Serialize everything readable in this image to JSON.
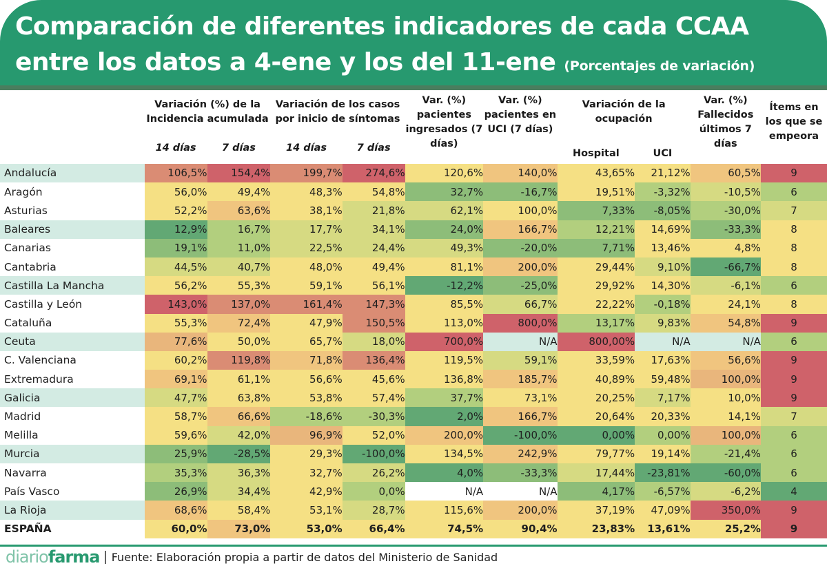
{
  "header": {
    "title_line1": "Comparación de diferentes indicadores de cada CCAA",
    "title_line2": "entre los datos a 4-ene y los del 11-ene",
    "subtitle": "(Porcentajes de variación)"
  },
  "footer": {
    "logo_part1": "diario",
    "logo_part2": "farma",
    "separator": "|",
    "source": "Fuente: Elaboración propia a partir de datos del Ministerio de Sanidad"
  },
  "colors": {
    "header_bg": "#27996f",
    "R": "#cf626a",
    "O": "#da8c74",
    "P": "#e9b67c",
    "Q": "#f0c57f",
    "Y": "#f5e084",
    "L": "#d6da82",
    "G": "#b2cf7e",
    "M": "#8dbd79",
    "D": "#62a874",
    "B": "#d3ebe3",
    "W": "#ffffff"
  },
  "chart_data": {
    "type": "table",
    "title": "Comparación de diferentes indicadores de cada CCAA entre los datos a 4-ene y los del 11-ene (Porcentajes de variación)",
    "column_groups": [
      {
        "label": "Variación (%)  de la Incidencia acumulada",
        "sub": [
          "14 días",
          "7 días"
        ]
      },
      {
        "label": "Variación de los casos por inicio de síntomas",
        "sub": [
          "14 días",
          "7 días"
        ]
      },
      {
        "label": "Var. (%) pacientes ingresados (7 días)",
        "sub": []
      },
      {
        "label": "Var. (%) pacientes en UCI (7 días)",
        "sub": []
      },
      {
        "label": "Variación de la ocupación",
        "sub": [
          "Hospital",
          "UCI"
        ]
      },
      {
        "label": "Var. (%) Fallecidos últimos 7 días",
        "sub": []
      },
      {
        "label": "Ítems en los que se empeora",
        "sub": []
      }
    ],
    "rows": [
      {
        "name": "Andalucía",
        "hl": true,
        "values": [
          "106,5%",
          "154,4%",
          "199,7%",
          "274,6%",
          "120,6%",
          "140,0%",
          "43,65%",
          "21,12%",
          "60,5%",
          "9"
        ],
        "colors": [
          "O",
          "R",
          "O",
          "R",
          "Y",
          "Q",
          "Y",
          "Y",
          "Q",
          "R"
        ]
      },
      {
        "name": "Aragón",
        "hl": false,
        "values": [
          "56,0%",
          "49,4%",
          "48,3%",
          "54,8%",
          "32,7%",
          "-16,7%",
          "19,51%",
          "-3,32%",
          "-10,5%",
          "6"
        ],
        "colors": [
          "Y",
          "Y",
          "Y",
          "Y",
          "M",
          "M",
          "Y",
          "G",
          "L",
          "G"
        ]
      },
      {
        "name": "Asturias",
        "hl": false,
        "values": [
          "52,2%",
          "63,6%",
          "38,1%",
          "21,8%",
          "62,1%",
          "100,0%",
          "7,33%",
          "-8,05%",
          "-30,0%",
          "7"
        ],
        "colors": [
          "Y",
          "Q",
          "Y",
          "L",
          "L",
          "Y",
          "M",
          "M",
          "G",
          "L"
        ]
      },
      {
        "name": "Baleares",
        "hl": true,
        "values": [
          "12,9%",
          "16,7%",
          "17,7%",
          "34,1%",
          "24,0%",
          "166,7%",
          "12,21%",
          "14,69%",
          "-33,3%",
          "8"
        ],
        "colors": [
          "D",
          "G",
          "L",
          "L",
          "M",
          "Q",
          "G",
          "Y",
          "M",
          "Y"
        ]
      },
      {
        "name": "Canarias",
        "hl": false,
        "values": [
          "19,1%",
          "11,0%",
          "22,5%",
          "24,4%",
          "49,3%",
          "-20,0%",
          "7,71%",
          "13,46%",
          "4,8%",
          "8"
        ],
        "colors": [
          "M",
          "G",
          "L",
          "L",
          "L",
          "M",
          "M",
          "Y",
          "Y",
          "Y"
        ]
      },
      {
        "name": "Cantabria",
        "hl": false,
        "values": [
          "44,5%",
          "40,7%",
          "48,0%",
          "49,4%",
          "81,1%",
          "200,0%",
          "29,44%",
          "9,10%",
          "-66,7%",
          "8"
        ],
        "colors": [
          "L",
          "L",
          "Y",
          "Y",
          "Y",
          "Q",
          "Y",
          "L",
          "D",
          "Y"
        ]
      },
      {
        "name": "Castilla La Mancha",
        "hl": true,
        "values": [
          "56,2%",
          "55,3%",
          "59,1%",
          "56,1%",
          "-12,2%",
          "-25,0%",
          "29,92%",
          "14,30%",
          "-6,1%",
          "6"
        ],
        "colors": [
          "Y",
          "Y",
          "Y",
          "Y",
          "D",
          "M",
          "Y",
          "Y",
          "L",
          "G"
        ]
      },
      {
        "name": "Castilla y León",
        "hl": false,
        "values": [
          "143,0%",
          "137,0%",
          "161,4%",
          "147,3%",
          "85,5%",
          "66,7%",
          "22,22%",
          "-0,18%",
          "24,1%",
          "8"
        ],
        "colors": [
          "R",
          "O",
          "O",
          "O",
          "Y",
          "L",
          "Y",
          "G",
          "Y",
          "Y"
        ]
      },
      {
        "name": "Cataluña",
        "hl": false,
        "values": [
          "55,3%",
          "72,4%",
          "47,9%",
          "150,5%",
          "113,0%",
          "800,0%",
          "13,17%",
          "9,83%",
          "54,8%",
          "9"
        ],
        "colors": [
          "Y",
          "Q",
          "Y",
          "O",
          "Y",
          "R",
          "G",
          "L",
          "Q",
          "R"
        ]
      },
      {
        "name": "Ceuta",
        "hl": true,
        "values": [
          "77,6%",
          "50,0%",
          "65,7%",
          "18,0%",
          "700,0%",
          "N/A",
          "800,00%",
          "N/A",
          "N/A",
          "6"
        ],
        "colors": [
          "P",
          "Y",
          "Y",
          "L",
          "R",
          "B",
          "R",
          "B",
          "B",
          "G"
        ]
      },
      {
        "name": "C. Valenciana",
        "hl": false,
        "values": [
          "60,2%",
          "119,8%",
          "71,8%",
          "136,4%",
          "119,5%",
          "59,1%",
          "33,59%",
          "17,63%",
          "56,6%",
          "9"
        ],
        "colors": [
          "Y",
          "O",
          "Q",
          "O",
          "Y",
          "L",
          "Y",
          "Y",
          "Q",
          "R"
        ]
      },
      {
        "name": "Extremadura",
        "hl": false,
        "values": [
          "69,1%",
          "61,1%",
          "56,6%",
          "45,6%",
          "136,8%",
          "185,7%",
          "40,89%",
          "59,48%",
          "100,0%",
          "9"
        ],
        "colors": [
          "Q",
          "Y",
          "Y",
          "Y",
          "Y",
          "Q",
          "Y",
          "Y",
          "P",
          "R"
        ]
      },
      {
        "name": "Galicia",
        "hl": true,
        "values": [
          "47,7%",
          "63,8%",
          "53,8%",
          "57,4%",
          "37,7%",
          "73,1%",
          "20,25%",
          "7,17%",
          "10,0%",
          "9"
        ],
        "colors": [
          "L",
          "Y",
          "Y",
          "Y",
          "G",
          "Y",
          "Y",
          "L",
          "Y",
          "R"
        ]
      },
      {
        "name": "Madrid",
        "hl": false,
        "values": [
          "58,7%",
          "66,6%",
          "-18,6%",
          "-30,3%",
          "2,0%",
          "166,7%",
          "20,64%",
          "20,33%",
          "14,1%",
          "7"
        ],
        "colors": [
          "Y",
          "Q",
          "G",
          "G",
          "D",
          "Q",
          "Y",
          "Y",
          "Y",
          "L"
        ]
      },
      {
        "name": "Melilla",
        "hl": false,
        "values": [
          "59,6%",
          "42,0%",
          "96,9%",
          "52,0%",
          "200,0%",
          "-100,0%",
          "0,00%",
          "0,00%",
          "100,0%",
          "6"
        ],
        "colors": [
          "Y",
          "L",
          "P",
          "Y",
          "Q",
          "D",
          "D",
          "G",
          "P",
          "G"
        ]
      },
      {
        "name": "Murcia",
        "hl": true,
        "values": [
          "25,9%",
          "-28,5%",
          "29,3%",
          "-100,0%",
          "134,5%",
          "242,9%",
          "79,77%",
          "19,14%",
          "-21,4%",
          "6"
        ],
        "colors": [
          "M",
          "D",
          "Y",
          "D",
          "Y",
          "Q",
          "Y",
          "Y",
          "G",
          "G"
        ]
      },
      {
        "name": "Navarra",
        "hl": false,
        "values": [
          "35,3%",
          "36,3%",
          "32,7%",
          "26,2%",
          "4,0%",
          "-33,3%",
          "17,44%",
          "-23,81%",
          "-60,0%",
          "6"
        ],
        "colors": [
          "G",
          "L",
          "Y",
          "L",
          "D",
          "M",
          "L",
          "D",
          "D",
          "G"
        ]
      },
      {
        "name": "País Vasco",
        "hl": false,
        "values": [
          "26,9%",
          "34,4%",
          "42,9%",
          "0,0%",
          "N/A",
          "N/A",
          "4,17%",
          "-6,57%",
          "-6,2%",
          "4"
        ],
        "colors": [
          "M",
          "L",
          "Y",
          "G",
          "W",
          "W",
          "M",
          "G",
          "L",
          "D"
        ]
      },
      {
        "name": "La Rioja",
        "hl": true,
        "values": [
          "68,6%",
          "58,4%",
          "53,1%",
          "28,7%",
          "115,6%",
          "200,0%",
          "37,19%",
          "47,09%",
          "350,0%",
          "9"
        ],
        "colors": [
          "Q",
          "Y",
          "Y",
          "L",
          "Y",
          "Q",
          "Y",
          "Y",
          "R",
          "R"
        ]
      },
      {
        "name": "ESPAÑA",
        "hl": false,
        "total": true,
        "values": [
          "60,0%",
          "73,0%",
          "53,0%",
          "66,4%",
          "74,5%",
          "90,4%",
          "23,83%",
          "13,61%",
          "25,2%",
          "9"
        ],
        "colors": [
          "Y",
          "Q",
          "Y",
          "Y",
          "Y",
          "Y",
          "Y",
          "Y",
          "Y",
          "R"
        ]
      }
    ]
  }
}
